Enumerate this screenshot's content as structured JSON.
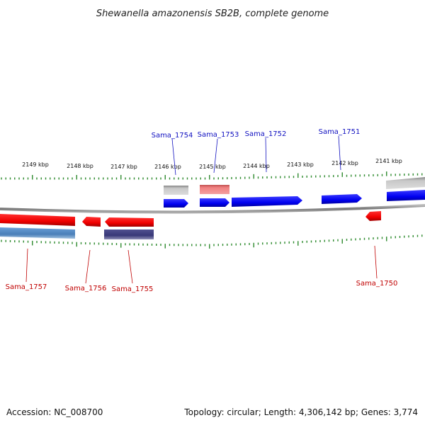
{
  "title": "Shewanella amazonensis SB2B, complete genome",
  "footer": {
    "accession": "Accession: NC_008700",
    "stats": "Topology: circular; Length: 4,306,142 bp; Genes: 3,774"
  },
  "colors": {
    "plus_label": "#1010c0",
    "minus_label": "#c00000",
    "tick": "#2e8b2e",
    "backbone": "#888888"
  },
  "scale": {
    "ticks": [
      "2149 kbp",
      "2148 kbp",
      "2147 kbp",
      "2146 kbp",
      "2145 kbp",
      "2144 kbp",
      "2143 kbp",
      "2142 kbp",
      "2141 kbp"
    ]
  },
  "genes_plus": [
    {
      "label": "Sama_1754",
      "color": "#1a1aff"
    },
    {
      "label": "Sama_1753",
      "color": "#1a1aff"
    },
    {
      "label": "Sama_1752",
      "color": "#1a1aff"
    },
    {
      "label": "Sama_1751",
      "color": "#1a1aff"
    }
  ],
  "genes_minus": [
    {
      "label": "Sama_1757",
      "color": "#ff1a1a"
    },
    {
      "label": "Sama_1756",
      "color": "#ff1a1a"
    },
    {
      "label": "Sama_1755",
      "color": "#ff1a1a"
    },
    {
      "label": "Sama_1750",
      "color": "#ff1a1a"
    }
  ],
  "features": [
    {
      "name": "feature-grey-plus",
      "color": "#b8b8b8"
    },
    {
      "name": "feature-pink-plus",
      "color": "#f08080"
    },
    {
      "name": "feature-grey-plus-right",
      "color": "#b8b8b8"
    },
    {
      "name": "feature-blue-minus",
      "color": "#4a7fb8"
    },
    {
      "name": "feature-navy-minus",
      "color": "#404080"
    }
  ]
}
